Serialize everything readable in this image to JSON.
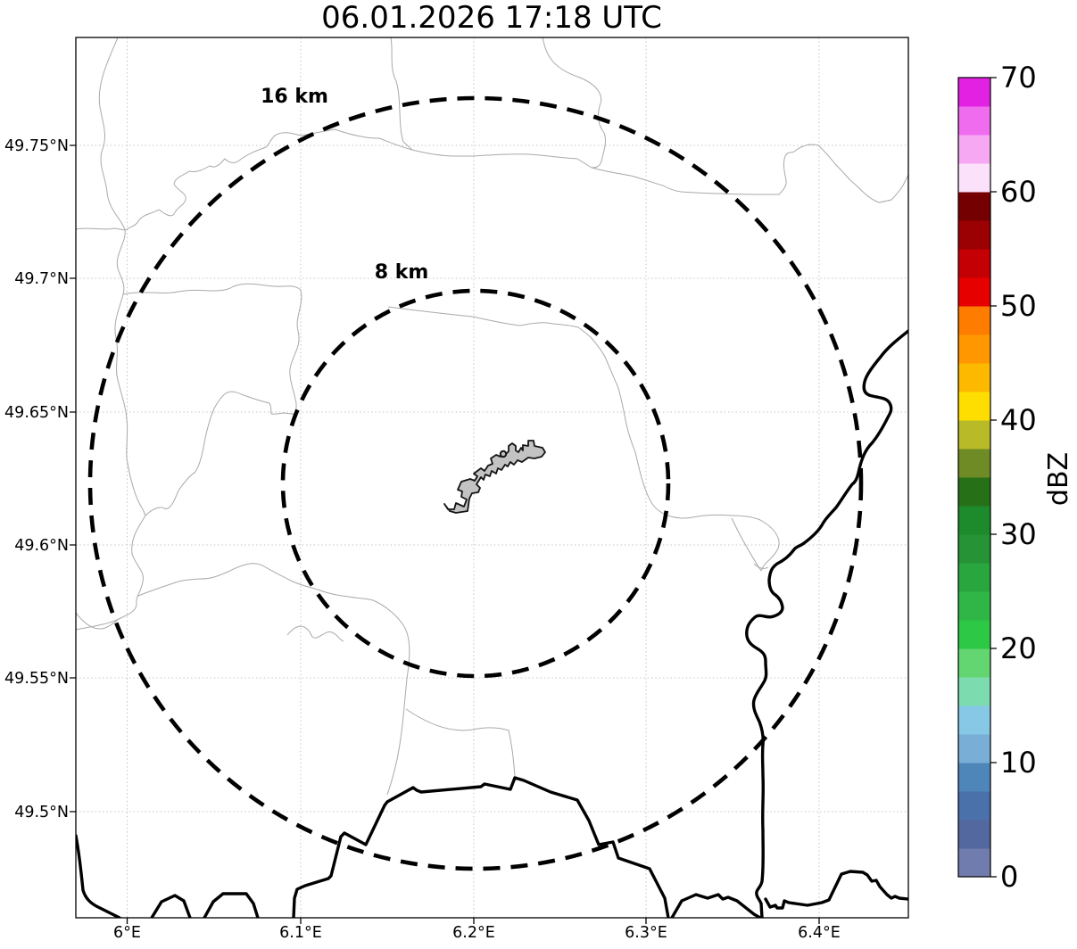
{
  "title": "06.01.2026 17:18 UTC",
  "map": {
    "x_tick_labels": [
      "6°E",
      "6.1°E",
      "6.2°E",
      "6.3°E",
      "6.4°E"
    ],
    "y_tick_labels": [
      "49.75°N",
      "49.7°N",
      "49.65°N",
      "49.6°N",
      "49.55°N",
      "49.5°N"
    ],
    "range_rings": [
      {
        "label": "16 km",
        "radius_km": 16
      },
      {
        "label": "8 km",
        "radius_km": 8
      }
    ]
  },
  "colorbar": {
    "label": "dBZ",
    "tick_labels": [
      "0",
      "10",
      "20",
      "30",
      "40",
      "50",
      "60",
      "70"
    ],
    "min": 0,
    "max": 70,
    "segment_step": 2.5,
    "colors_bottom_to_top": [
      "#707cae",
      "#53689e",
      "#4a71a9",
      "#4f86b9",
      "#79aed7",
      "#86c8e6",
      "#7cdcb0",
      "#63d672",
      "#2cc846",
      "#30b646",
      "#2aa63e",
      "#259336",
      "#1d8a2c",
      "#267018",
      "#6e8b26",
      "#b9ba28",
      "#fede00",
      "#fdb900",
      "#ff9800",
      "#fe7d00",
      "#e60000",
      "#c40004",
      "#9b0002",
      "#740001",
      "#fce1fb",
      "#f7a8f3",
      "#ef6cef",
      "#e321e3"
    ]
  },
  "theme": {
    "grid_color": "#c5c5c5",
    "admin_boundary_color": "#a9a9a9",
    "country_border_color": "#000000",
    "range_ring_color": "#000000",
    "airport_fill": "#c3c3c3"
  },
  "chart_data": {
    "type": "map",
    "title": "06.01.2026 17:18 UTC",
    "x_axis": {
      "ticks": [
        "6°E",
        "6.1°E",
        "6.2°E",
        "6.3°E",
        "6.4°E"
      ]
    },
    "y_axis": {
      "ticks": [
        "49.75°N",
        "49.7°N",
        "49.65°N",
        "49.6°N",
        "49.55°N",
        "49.5°N"
      ]
    },
    "colorbar": {
      "label": "dBZ",
      "min": 0,
      "max": 70,
      "ticks": [
        0,
        10,
        20,
        30,
        40,
        50,
        60,
        70
      ],
      "n_segments": 28
    },
    "range_rings_km": [
      8,
      16
    ],
    "features": [
      "thick country border lines",
      "thin municipal boundary lines",
      "gray airport outline at ring center with site marker"
    ],
    "reflectivity_echoes": "none visible"
  }
}
